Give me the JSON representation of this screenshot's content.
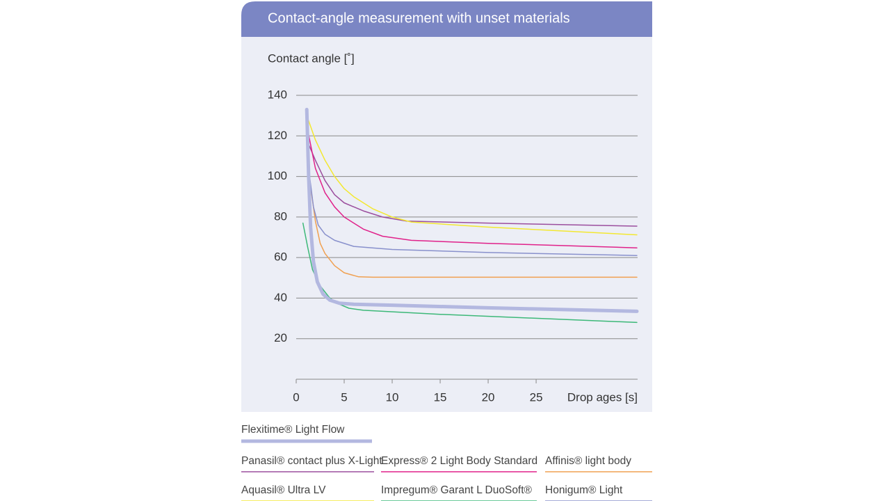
{
  "chart_data": {
    "type": "line",
    "title": "Contact-angle measurement with unset materials",
    "y_label": "Contact angle [˚]",
    "x_label": "Drop ages [s]",
    "xlim": [
      0,
      35.5
    ],
    "ylim": [
      0,
      140
    ],
    "xticks": [
      0,
      5,
      10,
      15,
      20,
      25
    ],
    "yticks": [
      20,
      40,
      60,
      80,
      100,
      120,
      140
    ],
    "grid": true,
    "series": [
      {
        "name": "Panasil® contact plus X-Light",
        "color": "#9b4e9e",
        "line_width": 1.5,
        "x": [
          1.1,
          2,
          3,
          4,
          5,
          7,
          9,
          11.5,
          20,
          35.5
        ],
        "values": [
          118,
          108,
          98,
          91,
          87,
          83,
          80,
          78,
          77,
          75.5
        ]
      },
      {
        "name": "Express® 2 Light Body Standard",
        "color": "#e0218a",
        "line_width": 1.5,
        "x": [
          1.1,
          2,
          3,
          4,
          5,
          7,
          9,
          12,
          20,
          35.5
        ],
        "values": [
          125,
          104,
          92,
          85,
          80,
          74,
          70.5,
          68.5,
          67,
          64.8
        ]
      },
      {
        "name": "Affinis® light body",
        "color": "#f0a050",
        "line_width": 1.5,
        "x": [
          1.1,
          1.5,
          2,
          2.5,
          3,
          4,
          5,
          6.5,
          8,
          35.5
        ],
        "values": [
          111,
          95,
          78,
          67,
          62,
          56,
          52.5,
          50.5,
          50.3,
          50.3
        ]
      },
      {
        "name": "Aquasil® Ultra LV",
        "color": "#f3e830",
        "line_width": 1.5,
        "x": [
          1.1,
          2,
          3,
          4,
          5,
          6,
          8,
          10,
          12,
          20,
          35.5
        ],
        "values": [
          130,
          118,
          108,
          100,
          94,
          90,
          84,
          80,
          77.5,
          75,
          71.2
        ]
      },
      {
        "name": "Impregum® Garant L DuoSoft®",
        "color": "#3cb878",
        "line_width": 1.5,
        "x": [
          0.7,
          1.2,
          1.7,
          2.5,
          3.5,
          4.5,
          5.5,
          7,
          15,
          35.5
        ],
        "values": [
          77,
          65,
          54,
          46,
          40,
          37,
          35,
          34,
          32,
          28
        ]
      },
      {
        "name": "Honigum® Light",
        "color": "#8890cc",
        "line_width": 1.5,
        "x": [
          1.1,
          1.4,
          1.8,
          2.3,
          3,
          4,
          6,
          10,
          20,
          35.5
        ],
        "values": [
          122,
          100,
          85,
          76,
          71.5,
          68.5,
          65.5,
          64,
          62.5,
          61
        ]
      },
      {
        "name": "Flexitime® Light Flow",
        "color": "#b3b8e0",
        "line_width": 5,
        "x": [
          1.1,
          1.3,
          1.5,
          1.8,
          2.2,
          2.8,
          3.5,
          4.5,
          6,
          10,
          20,
          35.5
        ],
        "values": [
          133,
          100,
          75,
          58,
          48,
          42,
          39,
          37.5,
          37,
          36.5,
          35.2,
          33.5
        ]
      }
    ]
  }
}
